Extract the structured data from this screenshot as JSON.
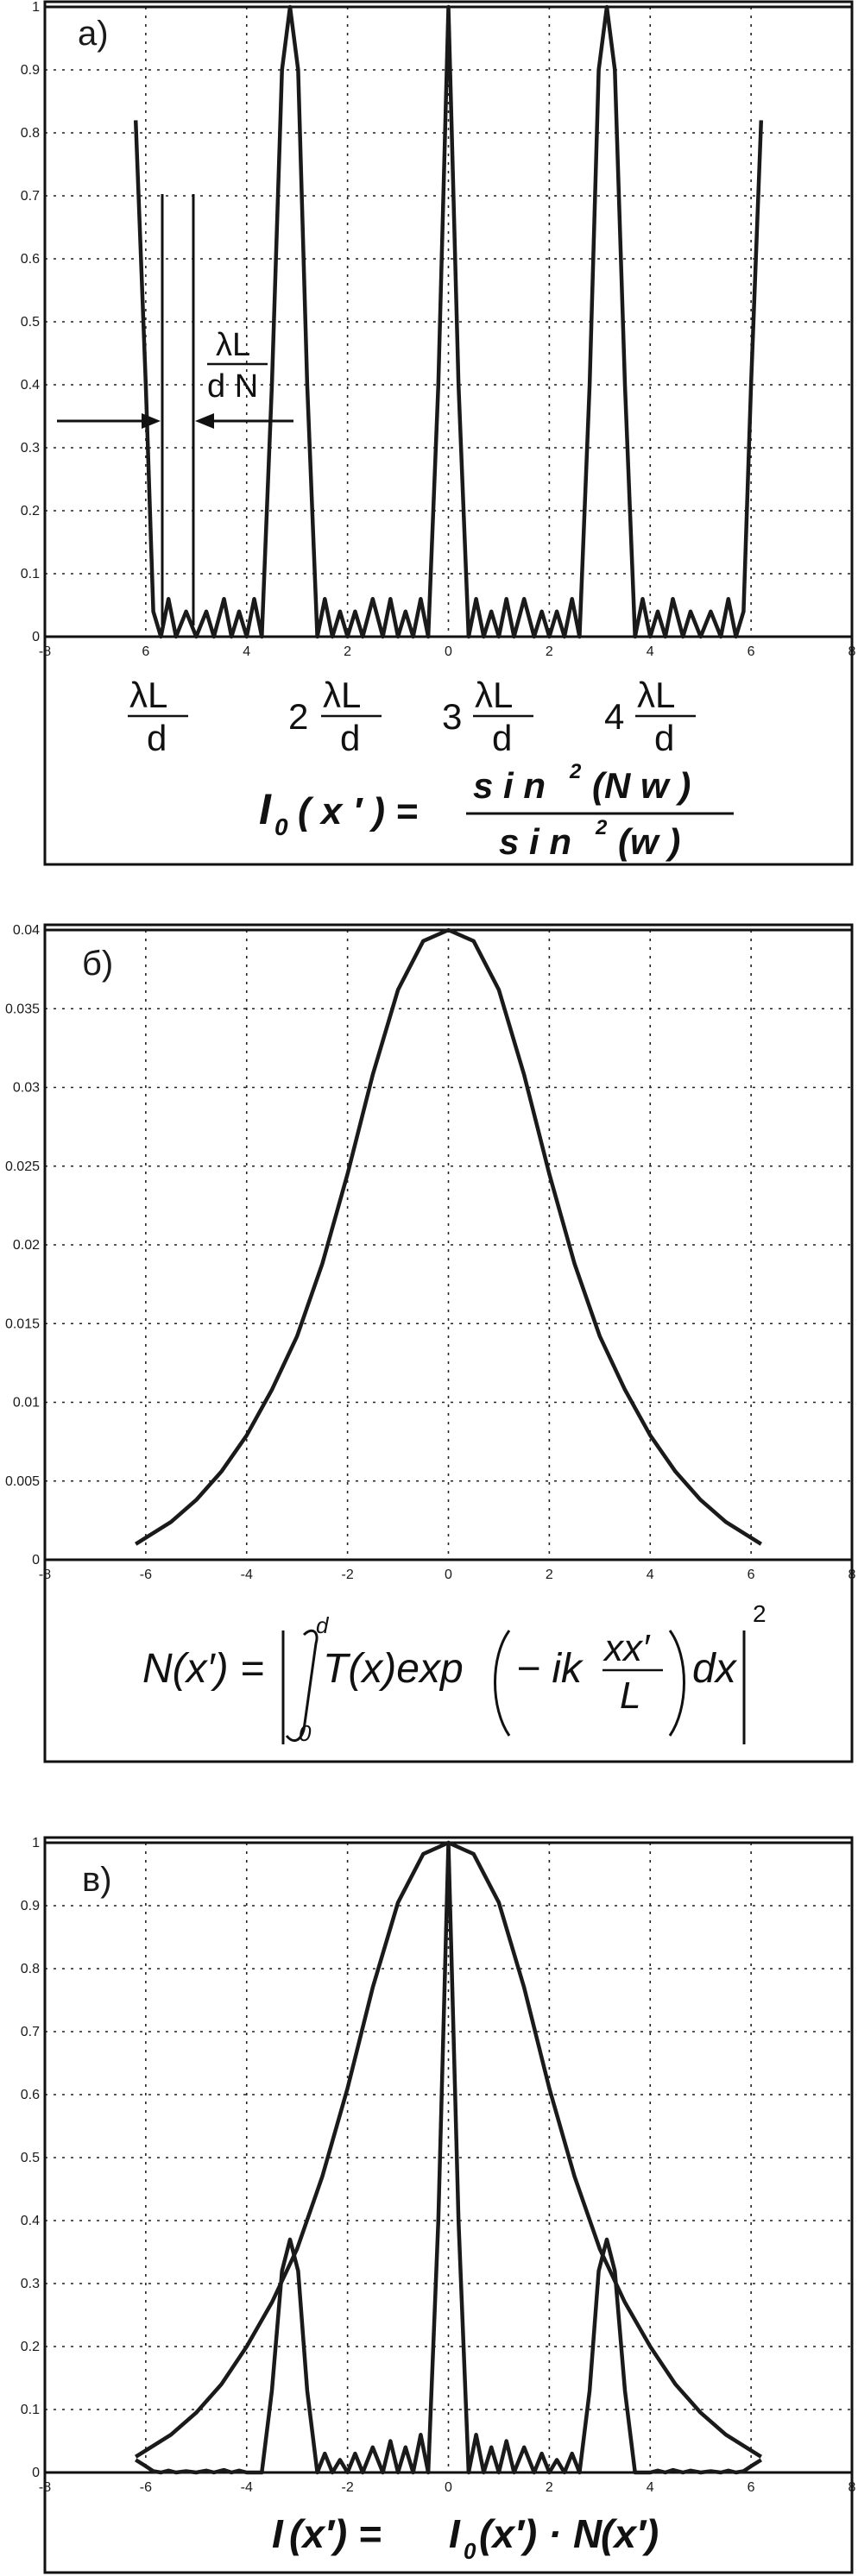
{
  "panels": {
    "a": {
      "label": "а)",
      "ratio_num": "λL",
      "ratio_den": "d N",
      "order_labels": [
        {
          "coef": "",
          "num": "λL",
          "den": "d"
        },
        {
          "coef": "2",
          "num": "λL",
          "den": "d"
        },
        {
          "coef": "3",
          "num": "λL",
          "den": "d"
        },
        {
          "coef": "4",
          "num": "λL",
          "den": "d"
        }
      ],
      "formula": {
        "lhs_main": "I",
        "lhs_sub": "0",
        "lhs_arg": "( x ′ ) =",
        "num_text": "s i n",
        "num_exp": "2",
        "num_arg": "(N  w )",
        "den_text": "s i n",
        "den_exp": "2",
        "den_arg": "(w )"
      }
    },
    "b": {
      "label": "б)",
      "formula": {
        "lhs": "N(x′) =",
        "int_upper": "d",
        "int_lower": "0",
        "body_a": "T(x)exp",
        "body_b": "− ik",
        "frac_num": "xx′",
        "frac_den": "L",
        "body_c": "dx",
        "exp": "2"
      }
    },
    "c": {
      "label": "в)",
      "formula": {
        "t1": "I",
        "t2": "(x′) = ",
        "t3": "I",
        "t3_sub": "0",
        "t4": "(x′) · ",
        "t5": "N",
        "t6": "(x′)"
      }
    }
  },
  "chart_data": [
    {
      "type": "line",
      "panel": "a",
      "xlim": [
        -8,
        8
      ],
      "ylim": [
        0,
        1
      ],
      "grid": true,
      "x_ticks": [
        "-8",
        "6",
        "4",
        "2",
        "0",
        "2",
        "4",
        "6",
        "8"
      ],
      "x_tick_values": [
        -8,
        -6,
        -4,
        -2,
        0,
        2,
        4,
        6,
        8
      ],
      "y_ticks": [
        "0",
        "0.1",
        "0.2",
        "0.3",
        "0.4",
        "0.5",
        "0.6",
        "0.7",
        "0.8",
        "0.9",
        "1"
      ],
      "y_tick_values": [
        0,
        0.1,
        0.2,
        0.3,
        0.4,
        0.5,
        0.6,
        0.7,
        0.8,
        0.9,
        1
      ],
      "series": [
        {
          "x": [
            -6.2,
            -6.0,
            -5.85,
            -5.7,
            -5.55,
            -5.4,
            -5.2,
            -5.0,
            -4.8,
            -4.65,
            -4.45,
            -4.3,
            -4.15,
            -4.0,
            -3.85,
            -3.7,
            -3.5,
            -3.3,
            -3.14,
            -2.98,
            -2.8,
            -2.6,
            -2.45,
            -2.3,
            -2.15,
            -2.0,
            -1.85,
            -1.7,
            -1.5,
            -1.3,
            -1.15,
            -1.0,
            -0.85,
            -0.7,
            -0.55,
            -0.4,
            -0.2,
            0,
            0.2,
            0.4,
            0.55,
            0.7,
            0.85,
            1.0,
            1.15,
            1.3,
            1.5,
            1.7,
            1.85,
            2.0,
            2.15,
            2.3,
            2.45,
            2.6,
            2.8,
            2.98,
            3.14,
            3.3,
            3.5,
            3.7,
            3.85,
            4.0,
            4.15,
            4.3,
            4.45,
            4.65,
            4.8,
            5.0,
            5.2,
            5.4,
            5.55,
            5.7,
            5.85,
            6.0,
            6.2
          ],
          "y": [
            0.82,
            0.4,
            0.04,
            0.0,
            0.06,
            0.0,
            0.04,
            0.0,
            0.04,
            0.0,
            0.06,
            0.0,
            0.04,
            0.0,
            0.06,
            0.0,
            0.4,
            0.9,
            1.0,
            0.9,
            0.4,
            0.0,
            0.06,
            0.0,
            0.04,
            0.0,
            0.04,
            0.0,
            0.06,
            0.0,
            0.06,
            0.0,
            0.04,
            0.0,
            0.06,
            0.0,
            0.4,
            1.0,
            0.4,
            0.0,
            0.06,
            0.0,
            0.04,
            0.0,
            0.06,
            0.0,
            0.06,
            0.0,
            0.04,
            0.0,
            0.04,
            0.0,
            0.06,
            0.0,
            0.4,
            0.9,
            1.0,
            0.9,
            0.4,
            0.0,
            0.06,
            0.0,
            0.04,
            0.0,
            0.06,
            0.0,
            0.04,
            0.0,
            0.04,
            0.0,
            0.06,
            0.0,
            0.04,
            0.4,
            0.82
          ]
        }
      ]
    },
    {
      "type": "line",
      "panel": "b",
      "xlim": [
        -8,
        8
      ],
      "ylim": [
        0,
        0.04
      ],
      "grid": true,
      "x_ticks": [
        "-8",
        "-6",
        "-4",
        "-2",
        "0",
        "2",
        "4",
        "6",
        "8"
      ],
      "x_tick_values": [
        -8,
        -6,
        -4,
        -2,
        0,
        2,
        4,
        6,
        8
      ],
      "y_ticks": [
        "0",
        "0.005",
        "0.01",
        "0.015",
        "0.02",
        "0.025",
        "0.03",
        "0.035",
        "0.04"
      ],
      "y_tick_values": [
        0,
        0.005,
        0.01,
        0.015,
        0.02,
        0.025,
        0.03,
        0.035,
        0.04
      ],
      "series": [
        {
          "x": [
            -6.2,
            -5.5,
            -5.0,
            -4.5,
            -4.0,
            -3.5,
            -3.0,
            -2.5,
            -2.0,
            -1.5,
            -1.0,
            -0.5,
            0,
            0.5,
            1.0,
            1.5,
            2.0,
            2.5,
            3.0,
            3.5,
            4.0,
            4.5,
            5.0,
            5.5,
            6.2
          ],
          "y": [
            0.001,
            0.0024,
            0.0038,
            0.0056,
            0.0079,
            0.0108,
            0.0142,
            0.0188,
            0.0245,
            0.0308,
            0.0362,
            0.0393,
            0.04,
            0.0393,
            0.0362,
            0.0308,
            0.0245,
            0.0188,
            0.0142,
            0.0108,
            0.0079,
            0.0056,
            0.0038,
            0.0024,
            0.001
          ]
        }
      ]
    },
    {
      "type": "line",
      "panel": "c",
      "xlim": [
        -8,
        8
      ],
      "ylim": [
        0,
        1
      ],
      "grid": true,
      "x_ticks": [
        "-8",
        "-6",
        "-4",
        "-2",
        "0",
        "2",
        "4",
        "6",
        "8"
      ],
      "x_tick_values": [
        -8,
        -6,
        -4,
        -2,
        0,
        2,
        4,
        6,
        8
      ],
      "y_ticks": [
        "0",
        "0.1",
        "0.2",
        "0.3",
        "0.4",
        "0.5",
        "0.6",
        "0.7",
        "0.8",
        "0.9",
        "1"
      ],
      "y_tick_values": [
        0,
        0.1,
        0.2,
        0.3,
        0.4,
        0.5,
        0.6,
        0.7,
        0.8,
        0.9,
        1
      ],
      "series": [
        {
          "x": [
            -6.2,
            -5.5,
            -5.0,
            -4.5,
            -4.0,
            -3.5,
            -3.0,
            -2.5,
            -2.0,
            -1.5,
            -1.0,
            -0.5,
            0,
            0.5,
            1.0,
            1.5,
            2.0,
            2.5,
            3.0,
            3.5,
            4.0,
            4.5,
            5.0,
            5.5,
            6.2
          ],
          "y": [
            0.025,
            0.06,
            0.095,
            0.14,
            0.2,
            0.27,
            0.355,
            0.47,
            0.61,
            0.77,
            0.905,
            0.982,
            1.0,
            0.982,
            0.905,
            0.77,
            0.61,
            0.47,
            0.355,
            0.27,
            0.2,
            0.14,
            0.095,
            0.06,
            0.025
          ]
        },
        {
          "x": [
            -6.2,
            -6.0,
            -5.85,
            -5.7,
            -5.55,
            -5.4,
            -5.2,
            -5.0,
            -4.8,
            -4.65,
            -4.45,
            -4.3,
            -4.15,
            -4.0,
            -3.7,
            -3.5,
            -3.3,
            -3.14,
            -2.98,
            -2.8,
            -2.6,
            -2.45,
            -2.3,
            -2.15,
            -2.0,
            -1.85,
            -1.7,
            -1.5,
            -1.3,
            -1.15,
            -1.0,
            -0.85,
            -0.7,
            -0.55,
            -0.4,
            -0.2,
            0,
            0.2,
            0.4,
            0.55,
            0.7,
            0.85,
            1.0,
            1.15,
            1.3,
            1.5,
            1.7,
            1.85,
            2.0,
            2.15,
            2.3,
            2.45,
            2.6,
            2.8,
            2.98,
            3.14,
            3.3,
            3.5,
            3.7,
            4.0,
            4.15,
            4.3,
            4.45,
            4.65,
            4.8,
            5.0,
            5.2,
            5.4,
            5.55,
            5.7,
            5.85,
            6.0,
            6.2
          ],
          "y": [
            0.02,
            0.01,
            0.002,
            0.0,
            0.003,
            0.0,
            0.002,
            0.0,
            0.003,
            0.0,
            0.004,
            0.0,
            0.003,
            0.0,
            0.0,
            0.13,
            0.32,
            0.37,
            0.32,
            0.13,
            0.0,
            0.03,
            0.0,
            0.02,
            0.0,
            0.03,
            0.0,
            0.04,
            0.0,
            0.05,
            0.0,
            0.04,
            0.0,
            0.06,
            0.0,
            0.4,
            1.0,
            0.4,
            0.0,
            0.06,
            0.0,
            0.04,
            0.0,
            0.05,
            0.0,
            0.04,
            0.0,
            0.03,
            0.0,
            0.02,
            0.0,
            0.03,
            0.0,
            0.13,
            0.32,
            0.37,
            0.32,
            0.13,
            0.0,
            0.0,
            0.003,
            0.0,
            0.004,
            0.0,
            0.003,
            0.0,
            0.002,
            0.0,
            0.003,
            0.0,
            0.002,
            0.01,
            0.02
          ]
        }
      ]
    }
  ]
}
